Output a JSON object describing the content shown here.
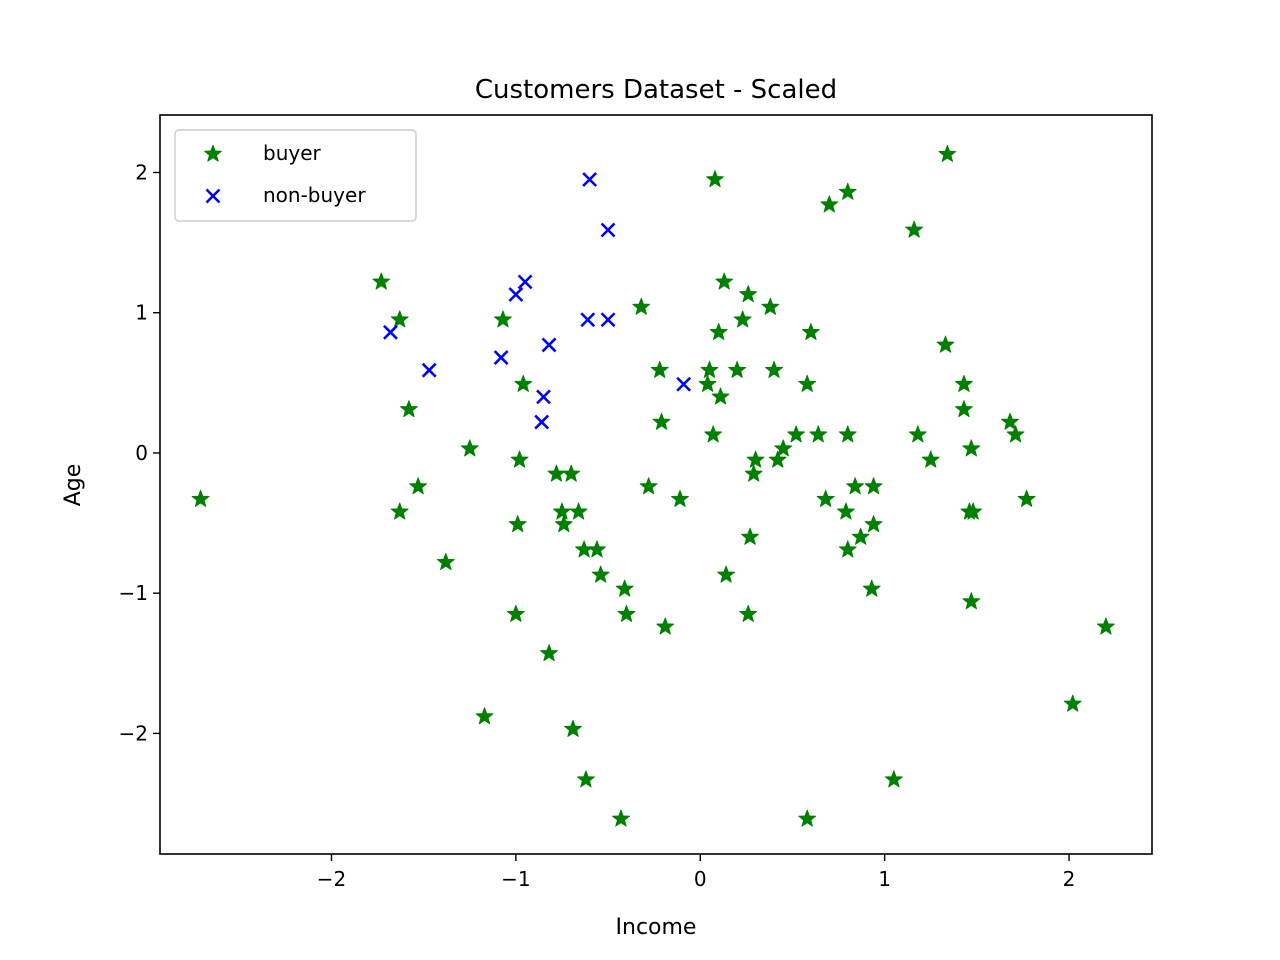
{
  "chart_data": {
    "type": "scatter",
    "title": "Customers Dataset - Scaled",
    "xlabel": "Income",
    "ylabel": "Age",
    "xlim": [
      -2.93,
      2.45
    ],
    "ylim": [
      -2.86,
      2.41
    ],
    "xticks": [
      -2,
      -1,
      0,
      1,
      2
    ],
    "yticks": [
      2,
      1,
      0,
      -1,
      -2
    ],
    "grid": false,
    "legend_position": "upper-left",
    "series": [
      {
        "name": "buyer",
        "marker": "star",
        "color": "#008000",
        "points": [
          [
            -2.71,
            -0.33
          ],
          [
            -1.73,
            1.22
          ],
          [
            -1.63,
            0.95
          ],
          [
            -1.58,
            0.31
          ],
          [
            -1.53,
            -0.24
          ],
          [
            -1.63,
            -0.42
          ],
          [
            -1.38,
            -0.78
          ],
          [
            -1.25,
            0.03
          ],
          [
            -1.17,
            -1.88
          ],
          [
            -1.07,
            0.95
          ],
          [
            -0.96,
            0.49
          ],
          [
            -0.98,
            -0.05
          ],
          [
            -0.99,
            -0.51
          ],
          [
            -1.0,
            -1.15
          ],
          [
            -0.82,
            -1.43
          ],
          [
            -0.78,
            -0.15
          ],
          [
            -0.7,
            -0.15
          ],
          [
            -0.75,
            -0.42
          ],
          [
            -0.74,
            -0.51
          ],
          [
            -0.66,
            -0.42
          ],
          [
            -0.63,
            -0.69
          ],
          [
            -0.56,
            -0.69
          ],
          [
            -0.54,
            -0.87
          ],
          [
            -0.41,
            -0.97
          ],
          [
            -0.4,
            -1.15
          ],
          [
            -0.69,
            -1.97
          ],
          [
            -0.62,
            -2.33
          ],
          [
            -0.43,
            -2.61
          ],
          [
            -0.32,
            1.04
          ],
          [
            -0.22,
            0.59
          ],
          [
            -0.21,
            0.22
          ],
          [
            -0.28,
            -0.24
          ],
          [
            -0.19,
            -1.24
          ],
          [
            -0.11,
            -0.33
          ],
          [
            0.04,
            0.49
          ],
          [
            0.05,
            0.59
          ],
          [
            0.08,
            1.95
          ],
          [
            0.13,
            1.22
          ],
          [
            0.1,
            0.86
          ],
          [
            0.11,
            0.4
          ],
          [
            0.07,
            0.13
          ],
          [
            0.2,
            0.59
          ],
          [
            0.23,
            0.95
          ],
          [
            0.26,
            1.13
          ],
          [
            0.38,
            1.04
          ],
          [
            0.4,
            0.59
          ],
          [
            0.3,
            -0.05
          ],
          [
            0.29,
            -0.15
          ],
          [
            0.27,
            -0.6
          ],
          [
            0.14,
            -0.87
          ],
          [
            0.26,
            -1.15
          ],
          [
            0.42,
            -0.05
          ],
          [
            0.45,
            0.03
          ],
          [
            0.52,
            0.13
          ],
          [
            0.58,
            0.49
          ],
          [
            0.6,
            0.86
          ],
          [
            0.64,
            0.13
          ],
          [
            0.7,
            1.77
          ],
          [
            0.8,
            1.86
          ],
          [
            0.68,
            -0.33
          ],
          [
            0.79,
            -0.42
          ],
          [
            0.8,
            -0.69
          ],
          [
            0.84,
            -0.24
          ],
          [
            0.87,
            -0.6
          ],
          [
            0.8,
            0.13
          ],
          [
            0.94,
            -0.24
          ],
          [
            0.94,
            -0.51
          ],
          [
            0.93,
            -0.97
          ],
          [
            0.58,
            -2.61
          ],
          [
            1.05,
            -2.33
          ],
          [
            1.16,
            1.59
          ],
          [
            1.18,
            0.13
          ],
          [
            1.25,
            -0.05
          ],
          [
            1.34,
            2.13
          ],
          [
            1.33,
            0.77
          ],
          [
            1.43,
            0.49
          ],
          [
            1.43,
            0.31
          ],
          [
            1.47,
            0.03
          ],
          [
            1.46,
            -0.42
          ],
          [
            1.48,
            -0.42
          ],
          [
            1.47,
            -1.06
          ],
          [
            1.68,
            0.22
          ],
          [
            1.71,
            0.13
          ],
          [
            1.77,
            -0.33
          ],
          [
            2.02,
            -1.79
          ],
          [
            2.2,
            -1.24
          ]
        ]
      },
      {
        "name": "non-buyer",
        "marker": "x",
        "color": "#0000ff",
        "points": [
          [
            -1.68,
            0.86
          ],
          [
            -1.47,
            0.59
          ],
          [
            -1.08,
            0.68
          ],
          [
            -1.0,
            1.13
          ],
          [
            -0.95,
            1.22
          ],
          [
            -0.82,
            0.77
          ],
          [
            -0.85,
            0.4
          ],
          [
            -0.86,
            0.22
          ],
          [
            -0.6,
            1.95
          ],
          [
            -0.5,
            1.59
          ],
          [
            -0.61,
            0.95
          ],
          [
            -0.5,
            0.95
          ],
          [
            -0.09,
            0.49
          ]
        ]
      }
    ]
  }
}
